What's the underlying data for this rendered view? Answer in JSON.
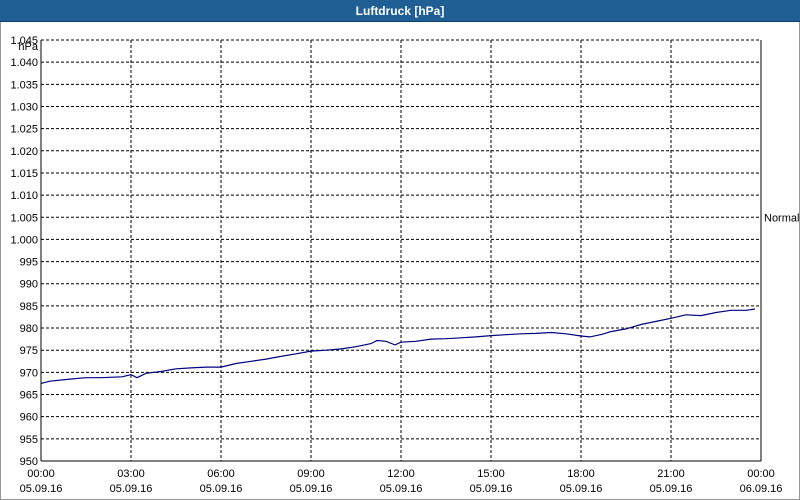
{
  "window": {
    "title": "Luftdruck [hPa]"
  },
  "chart_data": {
    "type": "line",
    "title": "Luftdruck [hPa]",
    "ylabel": "hPa",
    "ylim": [
      950,
      1045
    ],
    "yticks": [
      950,
      955,
      960,
      965,
      970,
      975,
      980,
      985,
      990,
      995,
      1000,
      1005,
      1010,
      1015,
      1020,
      1025,
      1030,
      1035,
      1040,
      1045
    ],
    "ytick_labels": [
      "950",
      "955",
      "960",
      "965",
      "970",
      "975",
      "980",
      "985",
      "990",
      "995",
      "1.000",
      "1.005",
      "1.010",
      "1.015",
      "1.020",
      "1.025",
      "1.030",
      "1.035",
      "1.040",
      "1.045"
    ],
    "xlim_hours": [
      0,
      24
    ],
    "xticks": [
      {
        "hour": 0,
        "time": "00:00",
        "date": "05.09.16"
      },
      {
        "hour": 3,
        "time": "03:00",
        "date": "05.09.16"
      },
      {
        "hour": 6,
        "time": "06:00",
        "date": "05.09.16"
      },
      {
        "hour": 9,
        "time": "09:00",
        "date": "05.09.16"
      },
      {
        "hour": 12,
        "time": "12:00",
        "date": "05.09.16"
      },
      {
        "hour": 15,
        "time": "15:00",
        "date": "05.09.16"
      },
      {
        "hour": 18,
        "time": "18:00",
        "date": "05.09.16"
      },
      {
        "hour": 21,
        "time": "21:00",
        "date": "05.09.16"
      },
      {
        "hour": 24,
        "time": "00:00",
        "date": "06.09.16"
      }
    ],
    "reference_lines": [
      {
        "label": "Normal",
        "value": 1005
      }
    ],
    "grid": true,
    "series": [
      {
        "color": "#000080",
        "x": [
          0,
          0.3,
          1,
          1.5,
          2,
          2.7,
          3,
          3.2,
          3.5,
          4,
          4.5,
          5,
          5.5,
          6,
          6.5,
          7,
          7.5,
          8,
          8.5,
          9,
          9.5,
          10,
          10.5,
          11,
          11.2,
          11.5,
          11.8,
          12,
          12.5,
          13,
          13.5,
          14,
          14.5,
          15,
          15.5,
          16,
          16.5,
          17,
          17.5,
          18,
          18.3,
          18.7,
          19,
          19.5,
          20,
          20.5,
          21,
          21.5,
          22,
          22.5,
          23,
          23.5,
          23.8
        ],
        "y": [
          967.5,
          968,
          968.5,
          968.8,
          968.8,
          969,
          969.5,
          968.8,
          969.8,
          970.2,
          970.8,
          971,
          971.2,
          971.2,
          972,
          972.5,
          973,
          973.6,
          974.2,
          974.8,
          975,
          975.3,
          975.8,
          976.5,
          977.2,
          977,
          976.2,
          976.8,
          977,
          977.5,
          977.6,
          977.8,
          978,
          978.3,
          978.5,
          978.7,
          978.8,
          979,
          978.7,
          978.2,
          978,
          978.6,
          979.2,
          979.8,
          980.8,
          981.5,
          982.2,
          983,
          982.8,
          983.5,
          984,
          984,
          984.3
        ]
      }
    ]
  }
}
